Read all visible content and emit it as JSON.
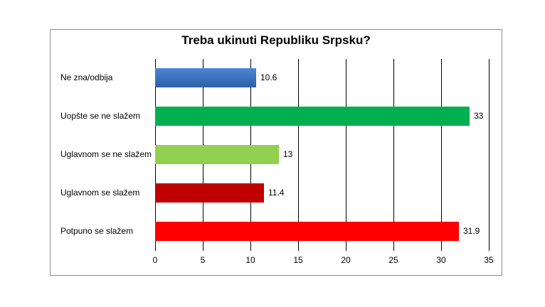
{
  "chart_data": {
    "type": "bar",
    "orientation": "horizontal",
    "title": "Treba ukinuti Republiku Srpsku?",
    "xlabel": "",
    "ylabel": "",
    "xlim": [
      0,
      35
    ],
    "x_ticks": [
      "0",
      "5",
      "10",
      "15",
      "20",
      "25",
      "30",
      "35"
    ],
    "grid": true,
    "legend": null,
    "categories": [
      "Ne zna/odbija",
      "Uopšte se ne slažem",
      "Uglavnom se ne slažem",
      "Uglavnom se slažem",
      "Potpuno se slažem"
    ],
    "values": [
      10.6,
      33,
      13,
      11.4,
      31.9
    ],
    "value_labels": [
      "10.6",
      "33",
      "13",
      "11.4",
      "31.9"
    ],
    "colors": [
      "#3a6fbf",
      "#00b050",
      "#92d050",
      "#c00000",
      "#ff0000"
    ]
  }
}
